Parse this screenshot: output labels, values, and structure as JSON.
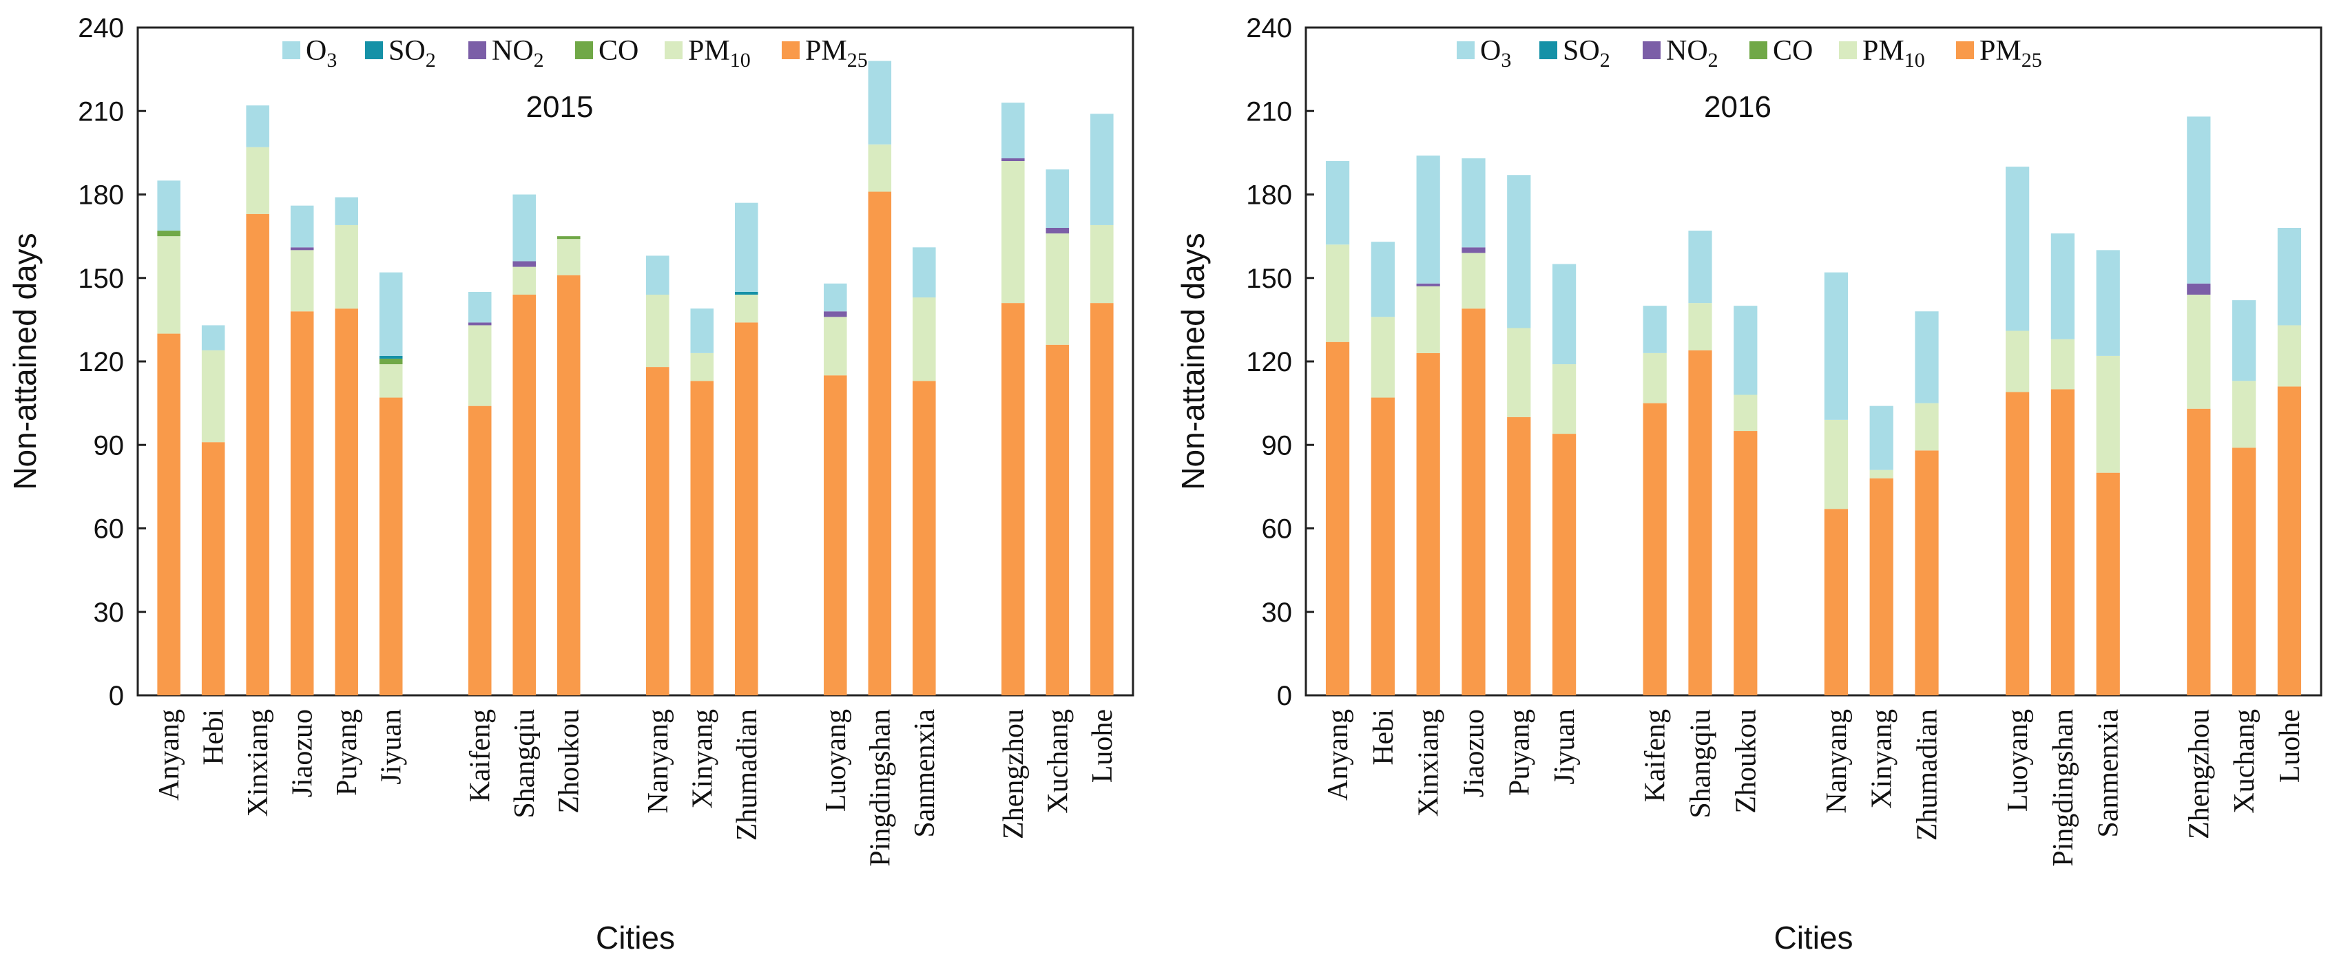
{
  "chart_data": [
    {
      "type": "bar",
      "stacked": true,
      "title": "2015",
      "xlabel": "Cities",
      "ylabel": "Non-attained days",
      "ylim": [
        0,
        240
      ],
      "yticks": [
        0,
        30,
        60,
        90,
        120,
        150,
        180,
        210,
        240
      ],
      "legend": "top-center",
      "categories": [
        "Anyang",
        "Hebi",
        "Xinxiang",
        "Jiaozuo",
        "Puyang",
        "Jiyuan",
        "Kaifeng",
        "Shangqiu",
        "Zhoukou",
        "Nanyang",
        "Xinyang",
        "Zhumadian",
        "Luoyang",
        "Pingdingshan",
        "Sanmenxia",
        "Zhengzhou",
        "Xuchang",
        "Luohe"
      ],
      "groups": [
        6,
        3,
        3,
        3,
        3
      ],
      "series": [
        {
          "name": "PM25",
          "label_main": "PM",
          "label_sub": "25",
          "color": "#F99A4A",
          "values": [
            130,
            91,
            173,
            138,
            139,
            107,
            104,
            144,
            151,
            118,
            113,
            134,
            115,
            181,
            113,
            141,
            126,
            141
          ]
        },
        {
          "name": "PM10",
          "label_main": "PM",
          "label_sub": "10",
          "color": "#D9EBC0",
          "values": [
            35,
            33,
            24,
            22,
            30,
            12,
            29,
            10,
            13,
            26,
            10,
            10,
            21,
            17,
            30,
            51,
            40,
            28
          ]
        },
        {
          "name": "CO",
          "label_main": "CO",
          "label_sub": "",
          "color": "#70A847",
          "values": [
            2,
            0,
            0,
            0,
            0,
            2,
            0,
            0,
            1,
            0,
            0,
            0,
            0,
            0,
            0,
            0,
            0,
            0
          ]
        },
        {
          "name": "NO2",
          "label_main": "NO",
          "label_sub": "2",
          "color": "#7B5EA7",
          "values": [
            0,
            0,
            0,
            1,
            0,
            0,
            1,
            2,
            0,
            0,
            0,
            0,
            2,
            0,
            0,
            1,
            2,
            0
          ]
        },
        {
          "name": "SO2",
          "label_main": "SO",
          "label_sub": "2",
          "color": "#1591A7",
          "values": [
            0,
            0,
            0,
            0,
            0,
            1,
            0,
            0,
            0,
            0,
            0,
            1,
            0,
            0,
            0,
            0,
            0,
            0
          ]
        },
        {
          "name": "O3",
          "label_main": "O",
          "label_sub": "3",
          "color": "#A8DCE6",
          "values": [
            18,
            9,
            15,
            15,
            10,
            30,
            11,
            24,
            0,
            14,
            16,
            32,
            10,
            30,
            18,
            20,
            21,
            40
          ]
        }
      ]
    },
    {
      "type": "bar",
      "stacked": true,
      "title": "2016",
      "xlabel": "Cities",
      "ylabel": "Non-attained days",
      "ylim": [
        0,
        240
      ],
      "yticks": [
        0,
        30,
        60,
        90,
        120,
        150,
        180,
        210,
        240
      ],
      "legend": "top-center",
      "categories": [
        "Anyang",
        "Hebi",
        "Xinxiang",
        "Jiaozuo",
        "Puyang",
        "Jiyuan",
        "Kaifeng",
        "Shangqiu",
        "Zhoukou",
        "Nanyang",
        "Xinyang",
        "Zhumadian",
        "Luoyang",
        "Pingdingshan",
        "Sanmenxia",
        "Zhengzhou",
        "Xuchang",
        "Luohe"
      ],
      "groups": [
        6,
        3,
        3,
        3,
        3
      ],
      "series": [
        {
          "name": "PM25",
          "label_main": "PM",
          "label_sub": "25",
          "color": "#F99A4A",
          "values": [
            127,
            107,
            123,
            139,
            100,
            94,
            105,
            124,
            95,
            67,
            78,
            88,
            109,
            110,
            80,
            103,
            89,
            111
          ]
        },
        {
          "name": "PM10",
          "label_main": "PM",
          "label_sub": "10",
          "color": "#D9EBC0",
          "values": [
            35,
            29,
            24,
            20,
            32,
            25,
            18,
            17,
            13,
            32,
            3,
            17,
            22,
            18,
            42,
            41,
            24,
            22
          ]
        },
        {
          "name": "CO",
          "label_main": "CO",
          "label_sub": "",
          "color": "#70A847",
          "values": [
            0,
            0,
            0,
            0,
            0,
            0,
            0,
            0,
            0,
            0,
            0,
            0,
            0,
            0,
            0,
            0,
            0,
            0
          ]
        },
        {
          "name": "NO2",
          "label_main": "NO",
          "label_sub": "2",
          "color": "#7B5EA7",
          "values": [
            0,
            0,
            1,
            2,
            0,
            0,
            0,
            0,
            0,
            0,
            0,
            0,
            0,
            0,
            0,
            4,
            0,
            0
          ]
        },
        {
          "name": "SO2",
          "label_main": "SO",
          "label_sub": "2",
          "color": "#1591A7",
          "values": [
            0,
            0,
            0,
            0,
            0,
            0,
            0,
            0,
            0,
            0,
            0,
            0,
            0,
            0,
            0,
            0,
            0,
            0
          ]
        },
        {
          "name": "O3",
          "label_main": "O",
          "label_sub": "3",
          "color": "#A8DCE6",
          "values": [
            30,
            27,
            46,
            32,
            55,
            36,
            17,
            26,
            32,
            53,
            23,
            33,
            59,
            38,
            38,
            60,
            29,
            35
          ]
        }
      ]
    }
  ],
  "legend_order": [
    "O3",
    "SO2",
    "NO2",
    "CO",
    "PM10",
    "PM25"
  ]
}
